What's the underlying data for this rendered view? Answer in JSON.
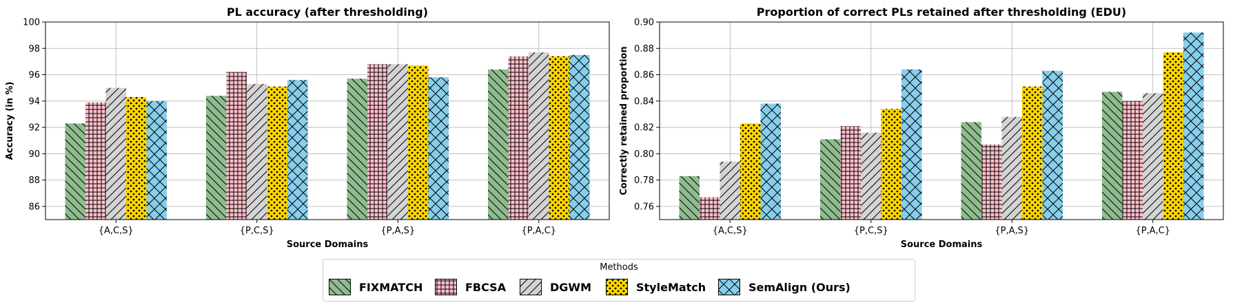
{
  "legend": {
    "title": "Methods",
    "entries": [
      {
        "name": "FIXMATCH",
        "color": "#8fbc8f",
        "hatch": "backslash"
      },
      {
        "name": "FBCSA",
        "color": "#ffc0cb",
        "hatch": "grid"
      },
      {
        "name": "DGWM",
        "color": "#d3d3d3",
        "hatch": "slash"
      },
      {
        "name": "StyleMatch",
        "color": "#ffd700",
        "hatch": "dots"
      },
      {
        "name": "SemAlign (Ours)",
        "color": "#87ceeb",
        "hatch": "cross"
      }
    ]
  },
  "chart_data": [
    {
      "type": "bar",
      "title": "PL accuracy (after thresholding)",
      "xlabel": "Source Domains",
      "ylabel": "Accuracy (in %)",
      "ylim": [
        85,
        100
      ],
      "yticks": [
        "86",
        "88",
        "90",
        "92",
        "94",
        "96",
        "98",
        "100"
      ],
      "grid": true,
      "categories": [
        "{A,C,S}",
        "{P,C,S}",
        "{P,A,S}",
        "{P,A,C}"
      ],
      "series": [
        {
          "name": "FIXMATCH",
          "values": [
            92.3,
            94.4,
            95.7,
            96.4
          ]
        },
        {
          "name": "FBCSA",
          "values": [
            93.9,
            96.2,
            96.8,
            97.4
          ]
        },
        {
          "name": "DGWM",
          "values": [
            95.0,
            95.3,
            96.8,
            97.7
          ]
        },
        {
          "name": "StyleMatch",
          "values": [
            94.3,
            95.1,
            96.7,
            97.4
          ]
        },
        {
          "name": "SemAlign (Ours)",
          "values": [
            94.0,
            95.6,
            95.8,
            97.5
          ]
        }
      ]
    },
    {
      "type": "bar",
      "title": "Proportion of correct PLs retained after thresholding (EDU)",
      "xlabel": "Source Domains",
      "ylabel": "Correctly retained proportion",
      "ylim": [
        0.75,
        0.9
      ],
      "yticks": [
        "0.76",
        "0.78",
        "0.80",
        "0.82",
        "0.84",
        "0.86",
        "0.88",
        "0.90"
      ],
      "grid": true,
      "categories": [
        "{A,C,S}",
        "{P,C,S}",
        "{P,A,S}",
        "{P,A,C}"
      ],
      "series": [
        {
          "name": "FIXMATCH",
          "values": [
            0.783,
            0.811,
            0.824,
            0.847
          ]
        },
        {
          "name": "FBCSA",
          "values": [
            0.767,
            0.821,
            0.807,
            0.84
          ]
        },
        {
          "name": "DGWM",
          "values": [
            0.794,
            0.816,
            0.828,
            0.846
          ]
        },
        {
          "name": "StyleMatch",
          "values": [
            0.823,
            0.834,
            0.851,
            0.877
          ]
        },
        {
          "name": "SemAlign (Ours)",
          "values": [
            0.838,
            0.864,
            0.863,
            0.892
          ]
        }
      ]
    }
  ]
}
